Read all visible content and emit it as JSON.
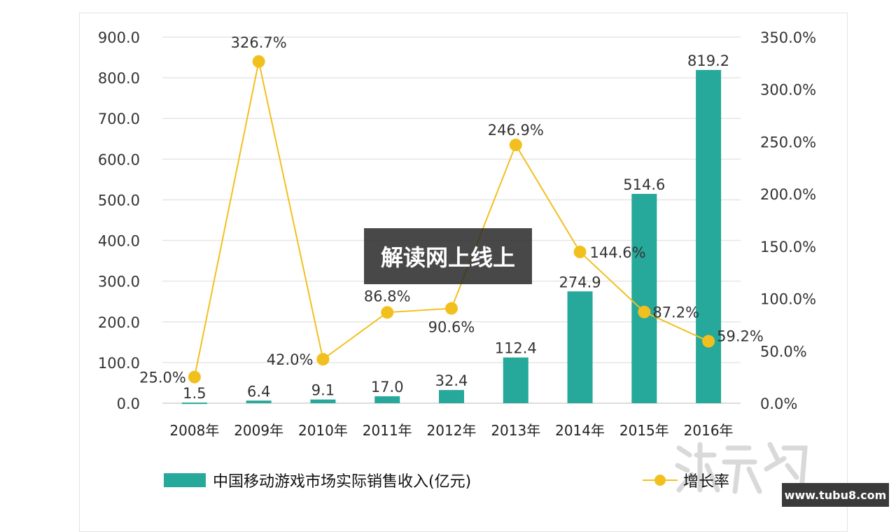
{
  "chart_data": {
    "type": "bar+line",
    "categories": [
      "2008年",
      "2009年",
      "2010年",
      "2011年",
      "2012年",
      "2013年",
      "2014年",
      "2015年",
      "2016年"
    ],
    "series": [
      {
        "name": "中国移动游戏市场实际销售收入(亿元)",
        "type": "bar",
        "axis": "left",
        "color": "#26a89a",
        "values": [
          1.5,
          6.4,
          9.1,
          17.0,
          32.4,
          112.4,
          274.9,
          514.6,
          819.2
        ],
        "labels": [
          "1.5",
          "6.4",
          "9.1",
          "17.0",
          "32.4",
          "112.4",
          "274.9",
          "514.6",
          "819.2"
        ]
      },
      {
        "name": "增长率",
        "type": "line",
        "axis": "right",
        "color": "#f2c01e",
        "values": [
          25.0,
          326.7,
          42.0,
          86.8,
          90.6,
          246.9,
          144.6,
          87.2,
          59.2
        ],
        "labels": [
          "25.0%",
          "326.7%",
          "42.0%",
          "86.8%",
          "90.6%",
          "246.9%",
          "144.6%",
          "87.2%",
          "59.2%"
        ]
      }
    ],
    "left_axis": {
      "ylim": [
        0,
        900
      ],
      "ticks": [
        "0.0",
        "100.0",
        "200.0",
        "300.0",
        "400.0",
        "500.0",
        "600.0",
        "700.0",
        "800.0",
        "900.0"
      ]
    },
    "right_axis": {
      "ylim": [
        0,
        350
      ],
      "ticks": [
        "0.0%",
        "50.0%",
        "100.0%",
        "150.0%",
        "200.0%",
        "250.0%",
        "300.0%",
        "350.0%"
      ]
    },
    "grid": true,
    "legend_position": "bottom"
  },
  "overlay_text": "解读网上线上",
  "watermark": {
    "logo": "游戏狗",
    "url": "www.tubu8.com"
  }
}
